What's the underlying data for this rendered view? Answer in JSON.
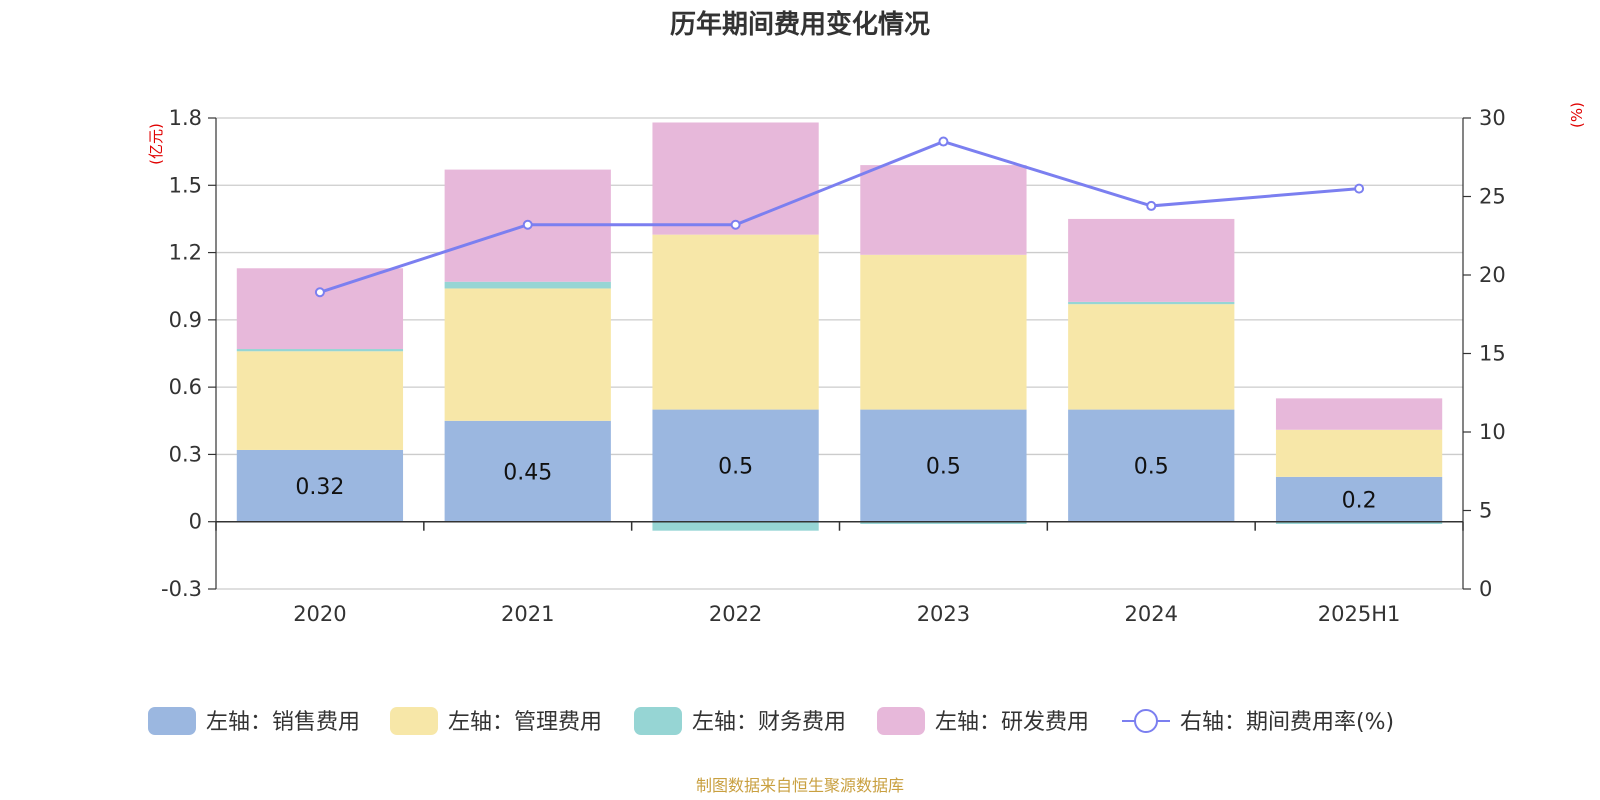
{
  "chart_data": {
    "type": "bar",
    "title": "历年期间费用变化情况",
    "categories": [
      "2020",
      "2021",
      "2022",
      "2023",
      "2024",
      "2025H1"
    ],
    "left_axis": {
      "unit": "(亿元)",
      "ylim": [
        -0.3,
        1.8
      ],
      "ticks": [
        "1.8",
        "1.5",
        "1.2",
        "0.9",
        "0.6",
        "0.3",
        "0",
        "-0.3"
      ]
    },
    "right_axis": {
      "unit": "(%)",
      "ylim": [
        0,
        30
      ],
      "ticks": [
        "30",
        "25",
        "20",
        "15",
        "10",
        "5",
        "0"
      ]
    },
    "series": [
      {
        "name": "左轴：销售费用",
        "type": "bar",
        "axis": "left",
        "color": "#9bb7e0",
        "values": [
          0.32,
          0.45,
          0.5,
          0.5,
          0.5,
          0.2
        ],
        "labels": [
          "0.32",
          "0.45",
          "0.5",
          "0.5",
          "0.5",
          "0.2"
        ]
      },
      {
        "name": "左轴：管理费用",
        "type": "bar",
        "axis": "left",
        "color": "#f7e7a8",
        "values": [
          0.44,
          0.59,
          0.78,
          0.69,
          0.47,
          0.21
        ]
      },
      {
        "name": "左轴：财务费用",
        "type": "bar",
        "axis": "left",
        "color": "#96d5d4",
        "values": [
          0.01,
          0.03,
          -0.04,
          -0.01,
          0.01,
          -0.01
        ]
      },
      {
        "name": "左轴：研发费用",
        "type": "bar",
        "axis": "left",
        "color": "#e7b8da",
        "values": [
          0.36,
          0.5,
          0.5,
          0.4,
          0.37,
          0.14
        ]
      },
      {
        "name": "右轴：期间费用率(%)",
        "type": "line",
        "axis": "right",
        "color": "#7b7ff0",
        "values": [
          18.9,
          23.2,
          23.2,
          28.5,
          24.4,
          25.5
        ]
      }
    ],
    "grid": true,
    "legend_position": "bottom"
  },
  "source_note": "制图数据来自恒生聚源数据库"
}
